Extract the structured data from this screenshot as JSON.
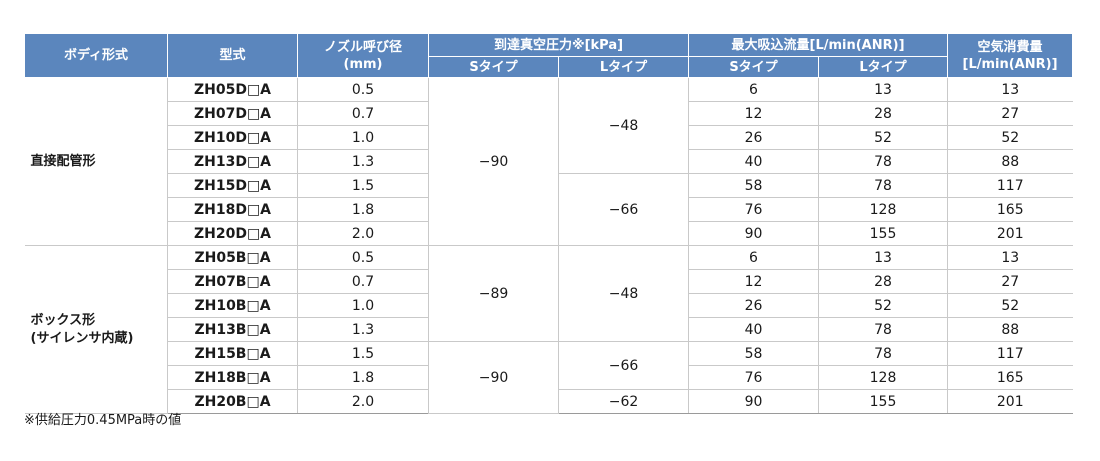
{
  "header": {
    "body_type": "ボディ形式",
    "model": "型式",
    "nozzle_line1": "ノズル呼び径",
    "nozzle_line2": "(mm)",
    "vacuum": "到達真空圧力※[kPa]",
    "flow": "最大吸込流量[L/min(ANR)]",
    "air_line1": "空気消費量",
    "air_line2": "[L/min(ANR)]",
    "s_type": "Sタイプ",
    "l_type": "Lタイプ"
  },
  "groups": [
    {
      "body": "直接配管形",
      "rows": [
        {
          "model": "ZH05D□A",
          "nozzle": "0.5",
          "flow_s": "6",
          "flow_l": "13",
          "air": "13"
        },
        {
          "model": "ZH07D□A",
          "nozzle": "0.7",
          "flow_s": "12",
          "flow_l": "28",
          "air": "27"
        },
        {
          "model": "ZH10D□A",
          "nozzle": "1.0",
          "flow_s": "26",
          "flow_l": "52",
          "air": "52"
        },
        {
          "model": "ZH13D□A",
          "nozzle": "1.3",
          "flow_s": "40",
          "flow_l": "78",
          "air": "88"
        },
        {
          "model": "ZH15D□A",
          "nozzle": "1.5",
          "flow_s": "58",
          "flow_l": "78",
          "air": "117"
        },
        {
          "model": "ZH18D□A",
          "nozzle": "1.8",
          "flow_s": "76",
          "flow_l": "128",
          "air": "165"
        },
        {
          "model": "ZH20D□A",
          "nozzle": "2.0",
          "flow_s": "90",
          "flow_l": "155",
          "air": "201"
        }
      ],
      "vac_s": [
        "−90"
      ],
      "vac_l": [
        "−48",
        "−66"
      ]
    },
    {
      "body_line1": "ボックス形",
      "body_line2": "(サイレンサ内蔵)",
      "rows": [
        {
          "model": "ZH05B□A",
          "nozzle": "0.5",
          "flow_s": "6",
          "flow_l": "13",
          "air": "13"
        },
        {
          "model": "ZH07B□A",
          "nozzle": "0.7",
          "flow_s": "12",
          "flow_l": "28",
          "air": "27"
        },
        {
          "model": "ZH10B□A",
          "nozzle": "1.0",
          "flow_s": "26",
          "flow_l": "52",
          "air": "52"
        },
        {
          "model": "ZH13B□A",
          "nozzle": "1.3",
          "flow_s": "40",
          "flow_l": "78",
          "air": "88"
        },
        {
          "model": "ZH15B□A",
          "nozzle": "1.5",
          "flow_s": "58",
          "flow_l": "78",
          "air": "117"
        },
        {
          "model": "ZH18B□A",
          "nozzle": "1.8",
          "flow_s": "76",
          "flow_l": "128",
          "air": "165"
        },
        {
          "model": "ZH20B□A",
          "nozzle": "2.0",
          "flow_s": "90",
          "flow_l": "155",
          "air": "201"
        }
      ],
      "vac_s": [
        "−89",
        "−90"
      ],
      "vac_l": [
        "−48",
        "−66",
        "−62"
      ]
    }
  ],
  "footnote": "※供給圧力0.45MPa時の値"
}
